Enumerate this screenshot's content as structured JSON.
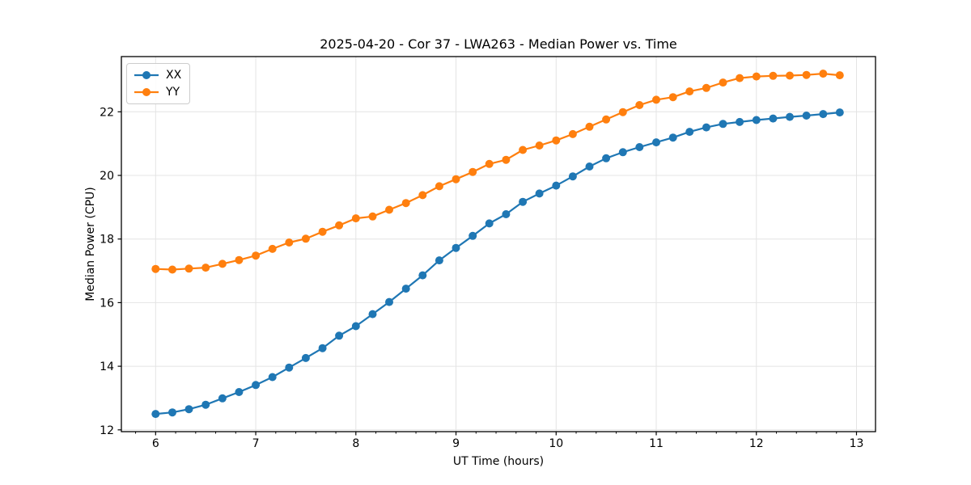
{
  "figure": {
    "title": "2025-04-20 - Cor 37 - LWA263 - Median Power vs. Time"
  },
  "chart_data": {
    "type": "line",
    "title": "2025-04-20 - Cor 37 - LWA263 - Median Power vs. Time",
    "xlabel": "UT Time (hours)",
    "ylabel": "Median Power (CPU)",
    "x": [
      6.0,
      6.167,
      6.333,
      6.5,
      6.667,
      6.833,
      7.0,
      7.167,
      7.333,
      7.5,
      7.667,
      7.833,
      8.0,
      8.167,
      8.333,
      8.5,
      8.667,
      8.833,
      9.0,
      9.167,
      9.333,
      9.5,
      9.667,
      9.833,
      10.0,
      10.167,
      10.333,
      10.5,
      10.667,
      10.833,
      11.0,
      11.167,
      11.333,
      11.5,
      11.667,
      11.833,
      12.0,
      12.167,
      12.333,
      12.5,
      12.667,
      12.833
    ],
    "series": [
      {
        "name": "XX",
        "color": "#1f77b4",
        "values": [
          12.5,
          12.55,
          12.65,
          12.79,
          12.99,
          13.19,
          13.41,
          13.66,
          13.96,
          14.26,
          14.57,
          14.96,
          15.26,
          15.64,
          16.02,
          16.44,
          16.86,
          17.33,
          17.72,
          18.1,
          18.49,
          18.78,
          19.17,
          19.43,
          19.68,
          19.97,
          20.28,
          20.54,
          20.73,
          20.89,
          21.04,
          21.19,
          21.37,
          21.51,
          21.62,
          21.68,
          21.74,
          21.79,
          21.84,
          21.88,
          21.93,
          21.98
        ]
      },
      {
        "name": "YY",
        "color": "#ff7f0e",
        "values": [
          17.06,
          17.04,
          17.07,
          17.1,
          17.22,
          17.34,
          17.48,
          17.69,
          17.89,
          18.01,
          18.23,
          18.43,
          18.65,
          18.71,
          18.92,
          19.13,
          19.38,
          19.66,
          19.88,
          20.11,
          20.36,
          20.49,
          20.8,
          20.94,
          21.1,
          21.3,
          21.53,
          21.76,
          21.99,
          22.21,
          22.38,
          22.46,
          22.64,
          22.75,
          22.92,
          23.06,
          23.11,
          23.13,
          23.14,
          23.16,
          23.2,
          23.15
        ]
      }
    ],
    "xlim": [
      5.658,
      13.19
    ],
    "ylim": [
      11.944,
      23.736
    ],
    "xticks": [
      6,
      7,
      8,
      9,
      10,
      11,
      12,
      13
    ],
    "yticks": [
      12,
      14,
      16,
      18,
      20,
      22
    ],
    "x_minor_tick_step": 0.2,
    "grid": true,
    "grid_color": "#e4e4e4",
    "axis_color": "#000000",
    "background": "#ffffff",
    "marker": "circle",
    "legend": {
      "position": "upper left",
      "entries": [
        "XX",
        "YY"
      ]
    }
  }
}
